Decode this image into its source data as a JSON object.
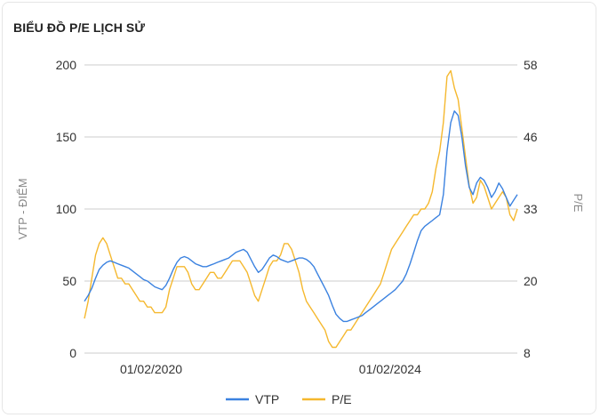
{
  "header": {
    "title": "BIỂU ĐỒ P/E LỊCH SỬ"
  },
  "chart_data": {
    "type": "line",
    "title": "BIỂU ĐỒ P/E LỊCH SỬ",
    "y_left_label": "VTP - ĐIỂM",
    "y_right_label": "P/E",
    "y_left_ticks": [
      "0",
      "50",
      "100",
      "150",
      "200"
    ],
    "y_right_ticks": [
      "8",
      "20",
      "33",
      "46",
      "58"
    ],
    "y_left_range": [
      0,
      200
    ],
    "y_right_range": [
      8,
      58
    ],
    "x_ticks": [
      "01/02/2020",
      "01/02/2024"
    ],
    "grid": true,
    "legend_position": "bottom",
    "colors": {
      "vtp": "#3b82e0",
      "pe": "#f5b82e",
      "grid": "#cccccc"
    },
    "series": [
      {
        "name": "VTP",
        "axis": "left",
        "values": [
          36,
          40,
          45,
          52,
          58,
          61,
          63,
          64,
          63,
          62,
          61,
          60,
          59,
          57,
          55,
          53,
          51,
          50,
          48,
          46,
          45,
          44,
          47,
          52,
          58,
          63,
          66,
          67,
          66,
          64,
          62,
          61,
          60,
          60,
          61,
          62,
          63,
          64,
          65,
          66,
          68,
          70,
          71,
          72,
          70,
          65,
          60,
          56,
          58,
          62,
          66,
          68,
          67,
          65,
          64,
          63,
          64,
          65,
          66,
          66,
          65,
          63,
          60,
          55,
          50,
          45,
          40,
          33,
          27,
          24,
          22,
          22,
          23,
          24,
          25,
          26,
          28,
          30,
          32,
          34,
          36,
          38,
          40,
          42,
          44,
          47,
          50,
          55,
          62,
          70,
          78,
          85,
          88,
          90,
          92,
          94,
          96,
          110,
          140,
          160,
          168,
          165,
          150,
          130,
          115,
          110,
          118,
          122,
          120,
          115,
          108,
          112,
          118,
          114,
          108,
          102,
          106,
          110
        ]
      },
      {
        "name": "P/E",
        "axis": "right",
        "values": [
          14,
          17,
          21,
          25,
          27,
          28,
          27,
          25,
          23,
          21,
          21,
          20,
          20,
          19,
          18,
          17,
          17,
          16,
          16,
          15,
          15,
          15,
          16,
          19,
          21,
          23,
          23,
          23,
          22,
          20,
          19,
          19,
          20,
          21,
          22,
          22,
          21,
          21,
          22,
          23,
          24,
          24,
          24,
          23,
          22,
          20,
          18,
          17,
          19,
          21,
          23,
          24,
          24,
          25,
          27,
          27,
          26,
          24,
          22,
          19,
          17,
          16,
          15,
          14,
          13,
          12,
          10,
          9,
          9,
          10,
          11,
          12,
          12,
          13,
          14,
          15,
          16,
          17,
          18,
          19,
          20,
          22,
          24,
          26,
          27,
          28,
          29,
          30,
          31,
          32,
          32,
          33,
          33,
          34,
          36,
          40,
          43,
          48,
          56,
          57,
          54,
          52,
          47,
          42,
          37,
          34,
          35,
          38,
          37,
          35,
          33,
          34,
          35,
          36,
          35,
          32,
          31,
          33
        ]
      }
    ]
  }
}
